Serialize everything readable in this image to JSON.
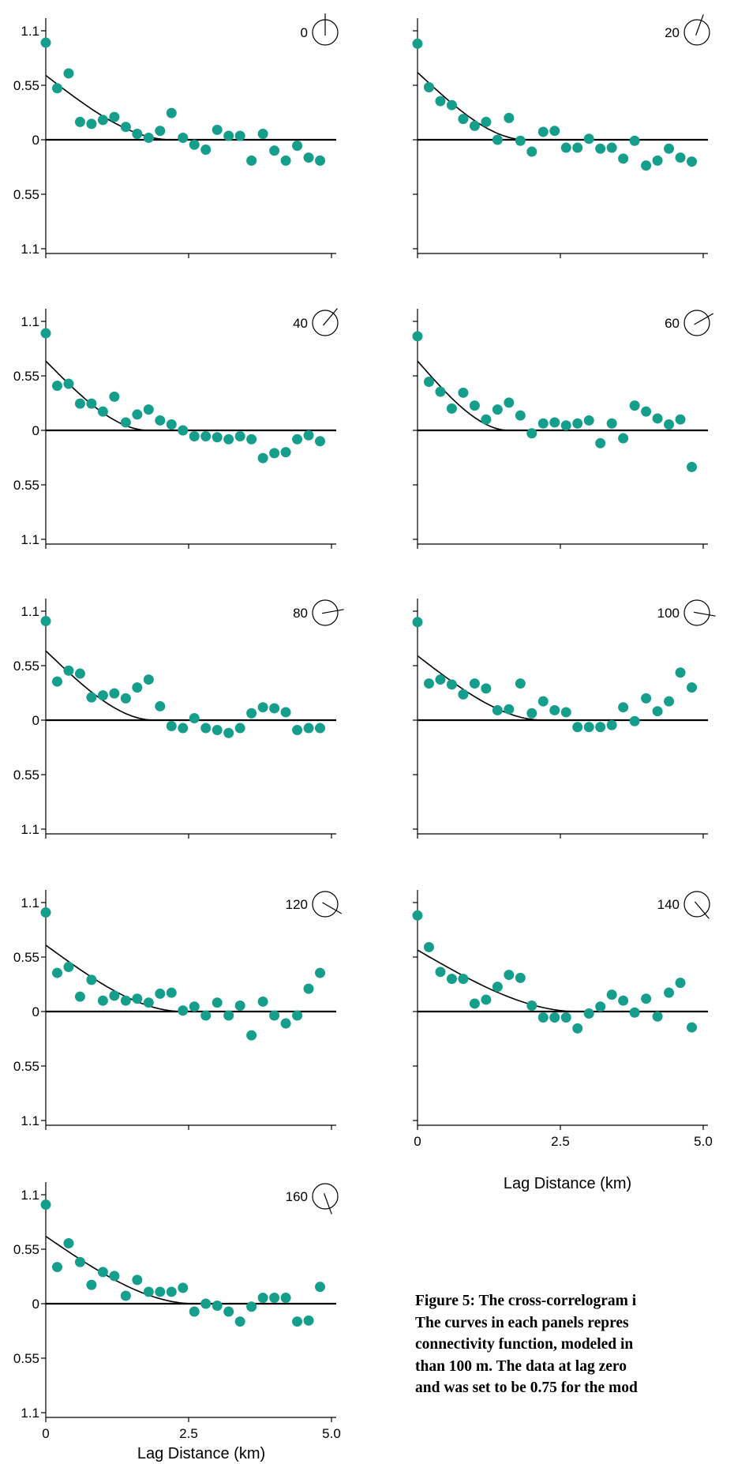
{
  "y_tick_labels": [
    "1.1",
    "0.55",
    "0",
    "0.55",
    "1.1"
  ],
  "x_tick_labels": [
    "0",
    "2.5",
    "5.0"
  ],
  "x_axis_title": "Lag Distance (km)",
  "caption_lines": [
    "Figure 5: The cross-correlogram i",
    "The curves in each panels repres",
    "connectivity function, modeled in",
    "than 100 m. The data at lag zero",
    "and was set to be 0.75 for the mod"
  ],
  "colors": {
    "point": "#159e8c",
    "line": "#000000"
  },
  "icon": "direction-compass-icon",
  "chart_data": [
    {
      "type": "scatter",
      "direction": "0",
      "ylim": [
        -1.1,
        1.1
      ],
      "xlim": [
        0,
        5
      ],
      "x": [
        0.0,
        0.2,
        0.4,
        0.6,
        0.8,
        1.0,
        1.2,
        1.4,
        1.6,
        1.8,
        2.0,
        2.2,
        2.4,
        2.6,
        2.8,
        3.0,
        3.2,
        3.4,
        3.6,
        3.8,
        4.0,
        4.2,
        4.4,
        4.6,
        4.8
      ],
      "y": [
        0.98,
        0.52,
        0.67,
        0.18,
        0.16,
        0.2,
        0.23,
        0.13,
        0.06,
        0.02,
        0.09,
        0.27,
        0.02,
        -0.05,
        -0.1,
        0.1,
        0.04,
        0.04,
        -0.21,
        0.06,
        -0.11,
        -0.21,
        -0.06,
        -0.18,
        -0.21
      ],
      "model_line": {
        "sill": 0.65,
        "range": 2.2
      }
    },
    {
      "type": "scatter",
      "direction": "20",
      "ylim": [
        -1.1,
        1.1
      ],
      "xlim": [
        0,
        5
      ],
      "x": [
        0.0,
        0.2,
        0.4,
        0.6,
        0.8,
        1.0,
        1.2,
        1.4,
        1.6,
        1.8,
        2.0,
        2.2,
        2.4,
        2.6,
        2.8,
        3.0,
        3.2,
        3.4,
        3.6,
        3.8,
        4.0,
        4.2,
        4.4,
        4.6,
        4.8
      ],
      "y": [
        0.97,
        0.53,
        0.39,
        0.35,
        0.21,
        0.14,
        0.18,
        0.0,
        0.22,
        -0.01,
        -0.12,
        0.08,
        0.09,
        -0.08,
        -0.08,
        0.01,
        -0.09,
        -0.08,
        -0.19,
        -0.01,
        -0.26,
        -0.21,
        -0.09,
        -0.18,
        -0.22
      ],
      "model_line": {
        "sill": 0.68,
        "range": 1.9
      }
    },
    {
      "type": "scatter",
      "direction": "40",
      "ylim": [
        -1.1,
        1.1
      ],
      "xlim": [
        0,
        5
      ],
      "x": [
        0.0,
        0.2,
        0.4,
        0.6,
        0.8,
        1.0,
        1.2,
        1.4,
        1.6,
        1.8,
        2.0,
        2.2,
        2.4,
        2.6,
        2.8,
        3.0,
        3.2,
        3.4,
        3.6,
        3.8,
        4.0,
        4.2,
        4.4,
        4.6,
        4.8
      ],
      "y": [
        0.98,
        0.45,
        0.47,
        0.27,
        0.27,
        0.19,
        0.34,
        0.08,
        0.16,
        0.21,
        0.1,
        0.06,
        0.0,
        -0.06,
        -0.06,
        -0.07,
        -0.09,
        -0.06,
        -0.09,
        -0.28,
        -0.23,
        -0.22,
        -0.09,
        -0.05,
        -0.11
      ],
      "model_line": {
        "sill": 0.7,
        "range": 1.8
      }
    },
    {
      "type": "scatter",
      "direction": "60",
      "ylim": [
        -1.1,
        1.1
      ],
      "xlim": [
        0,
        5
      ],
      "x": [
        0.0,
        0.2,
        0.4,
        0.6,
        0.8,
        1.0,
        1.2,
        1.4,
        1.6,
        1.8,
        2.0,
        2.2,
        2.4,
        2.6,
        2.8,
        3.0,
        3.2,
        3.4,
        3.6,
        3.8,
        4.0,
        4.2,
        4.4,
        4.6,
        4.8
      ],
      "y": [
        0.95,
        0.49,
        0.39,
        0.22,
        0.38,
        0.25,
        0.11,
        0.21,
        0.28,
        0.15,
        -0.03,
        0.07,
        0.08,
        0.05,
        0.07,
        0.1,
        -0.13,
        0.07,
        -0.08,
        0.25,
        0.19,
        0.12,
        0.06,
        0.11,
        -0.37
      ],
      "model_line": {
        "sill": 0.7,
        "range": 1.6
      }
    },
    {
      "type": "scatter",
      "direction": "80",
      "ylim": [
        -1.1,
        1.1
      ],
      "xlim": [
        0,
        5
      ],
      "x": [
        0.0,
        0.2,
        0.4,
        0.6,
        0.8,
        1.0,
        1.2,
        1.4,
        1.6,
        1.8,
        2.0,
        2.2,
        2.4,
        2.6,
        2.8,
        3.0,
        3.2,
        3.4,
        3.6,
        3.8,
        4.0,
        4.2,
        4.4,
        4.6,
        4.8
      ],
      "y": [
        1.0,
        0.39,
        0.5,
        0.47,
        0.23,
        0.25,
        0.27,
        0.22,
        0.33,
        0.41,
        0.14,
        -0.06,
        -0.08,
        0.02,
        -0.08,
        -0.1,
        -0.13,
        -0.08,
        0.07,
        0.13,
        0.12,
        0.08,
        -0.1,
        -0.08,
        -0.08
      ],
      "model_line": {
        "sill": 0.7,
        "range": 1.9
      }
    },
    {
      "type": "scatter",
      "direction": "100",
      "ylim": [
        -1.1,
        1.1
      ],
      "xlim": [
        0,
        5
      ],
      "x": [
        0.0,
        0.2,
        0.4,
        0.6,
        0.8,
        1.0,
        1.2,
        1.4,
        1.6,
        1.8,
        2.0,
        2.2,
        2.4,
        2.6,
        2.8,
        3.0,
        3.2,
        3.4,
        3.6,
        3.8,
        4.0,
        4.2,
        4.4,
        4.6,
        4.8
      ],
      "y": [
        0.99,
        0.37,
        0.41,
        0.36,
        0.26,
        0.37,
        0.32,
        0.1,
        0.11,
        0.37,
        0.07,
        0.19,
        0.1,
        0.08,
        -0.07,
        -0.07,
        -0.07,
        -0.05,
        0.13,
        -0.01,
        0.22,
        0.09,
        0.19,
        0.48,
        0.33
      ],
      "model_line": {
        "sill": 0.65,
        "range": 2.2
      }
    },
    {
      "type": "scatter",
      "direction": "120",
      "ylim": [
        -1.1,
        1.1
      ],
      "xlim": [
        0,
        5
      ],
      "x": [
        0.0,
        0.2,
        0.4,
        0.6,
        0.8,
        1.0,
        1.2,
        1.4,
        1.6,
        1.8,
        2.0,
        2.2,
        2.4,
        2.6,
        2.8,
        3.0,
        3.2,
        3.4,
        3.6,
        3.8,
        4.0,
        4.2,
        4.4,
        4.6,
        4.8
      ],
      "y": [
        1.0,
        0.39,
        0.45,
        0.15,
        0.32,
        0.11,
        0.16,
        0.11,
        0.13,
        0.09,
        0.18,
        0.19,
        0.01,
        0.05,
        -0.04,
        0.09,
        -0.04,
        0.06,
        -0.24,
        0.1,
        -0.04,
        -0.12,
        -0.04,
        0.23,
        0.39
      ],
      "model_line": {
        "sill": 0.67,
        "range": 2.4
      }
    },
    {
      "type": "scatter",
      "direction": "140",
      "ylim": [
        -1.1,
        1.1
      ],
      "xlim": [
        0,
        5
      ],
      "x": [
        0.0,
        0.2,
        0.4,
        0.6,
        0.8,
        1.0,
        1.2,
        1.4,
        1.6,
        1.8,
        2.0,
        2.2,
        2.4,
        2.6,
        2.8,
        3.0,
        3.2,
        3.4,
        3.6,
        3.8,
        4.0,
        4.2,
        4.4,
        4.6,
        4.8
      ],
      "y": [
        0.97,
        0.65,
        0.4,
        0.33,
        0.33,
        0.08,
        0.12,
        0.25,
        0.37,
        0.34,
        0.06,
        -0.06,
        -0.06,
        -0.06,
        -0.17,
        -0.02,
        0.05,
        0.17,
        0.11,
        -0.01,
        0.13,
        -0.05,
        0.19,
        0.29,
        -0.16
      ],
      "model_line": {
        "sill": 0.62,
        "range": 2.8
      }
    },
    {
      "type": "scatter",
      "direction": "160",
      "ylim": [
        -1.1,
        1.1
      ],
      "xlim": [
        0,
        5
      ],
      "x": [
        0.0,
        0.2,
        0.4,
        0.6,
        0.8,
        1.0,
        1.2,
        1.4,
        1.6,
        1.8,
        2.0,
        2.2,
        2.4,
        2.6,
        2.8,
        3.0,
        3.2,
        3.4,
        3.6,
        3.8,
        4.0,
        4.2,
        4.4,
        4.6,
        4.8
      ],
      "y": [
        1.0,
        0.37,
        0.61,
        0.42,
        0.19,
        0.32,
        0.28,
        0.08,
        0.24,
        0.12,
        0.12,
        0.12,
        0.16,
        -0.08,
        0.0,
        -0.02,
        -0.08,
        -0.18,
        -0.03,
        0.06,
        0.06,
        0.06,
        -0.18,
        -0.17,
        0.17
      ],
      "model_line": {
        "sill": 0.68,
        "range": 2.6
      }
    }
  ]
}
